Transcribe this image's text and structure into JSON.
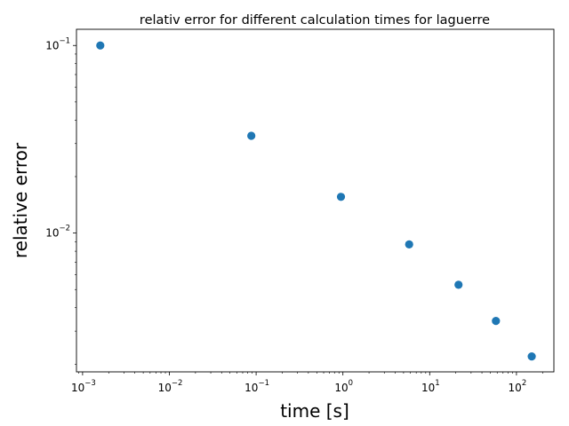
{
  "chart_data": {
    "type": "scatter",
    "title": "relativ error for different calculation times for laguerre",
    "xlabel": "time [s]",
    "ylabel": "relative error",
    "x_scale": "log",
    "y_scale": "log",
    "xlim": [
      0.00085,
      270
    ],
    "ylim": [
      0.00182,
      0.122
    ],
    "x_major_ticks": [
      {
        "value": 0.001,
        "base": "10",
        "exp": "−3"
      },
      {
        "value": 0.01,
        "base": "10",
        "exp": "−2"
      },
      {
        "value": 0.1,
        "base": "10",
        "exp": "−1"
      },
      {
        "value": 1,
        "base": "10",
        "exp": "0"
      },
      {
        "value": 10,
        "base": "10",
        "exp": "1"
      },
      {
        "value": 100,
        "base": "10",
        "exp": "2"
      }
    ],
    "y_major_ticks": [
      {
        "value": 0.1,
        "base": "10",
        "exp": "−1"
      },
      {
        "value": 0.01,
        "base": "10",
        "exp": "−2"
      }
    ],
    "grid": false,
    "marker_color": "#1f77b4",
    "points": [
      {
        "x": 0.0016,
        "y": 0.1
      },
      {
        "x": 0.088,
        "y": 0.033
      },
      {
        "x": 0.95,
        "y": 0.0156
      },
      {
        "x": 5.8,
        "y": 0.0087
      },
      {
        "x": 21.5,
        "y": 0.0053
      },
      {
        "x": 58,
        "y": 0.0034
      },
      {
        "x": 150,
        "y": 0.0022
      }
    ]
  }
}
